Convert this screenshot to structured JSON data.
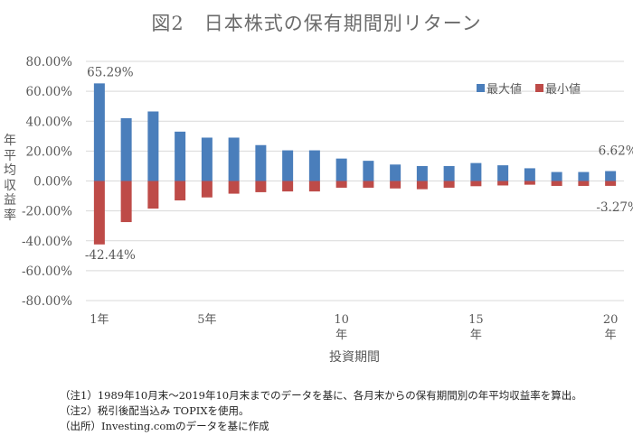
{
  "title": "図2　日本株式の保有期間別リターン",
  "chart_data": {
    "type": "bar",
    "title": "図2　日本株式の保有期間別リターン",
    "xlabel": "投資期間",
    "ylabel": "年平均収益率",
    "ylim": [
      -80,
      80
    ],
    "y_ticks": [
      80,
      60,
      40,
      20,
      0,
      -20,
      -40,
      -60,
      -80
    ],
    "y_tick_labels": [
      "80.00%",
      "60.00%",
      "40.00%",
      "20.00%",
      "0.00%",
      "-20.00%",
      "-40.00%",
      "-60.00%",
      "-80.00%"
    ],
    "grid": true,
    "legend_position": "top-right",
    "categories": [
      "1年",
      "2年",
      "3年",
      "4年",
      "5年",
      "6年",
      "7年",
      "8年",
      "9年",
      "10年",
      "11年",
      "12年",
      "13年",
      "14年",
      "15年",
      "16年",
      "17年",
      "18年",
      "19年",
      "20年"
    ],
    "x_tick_labels": [
      {
        "index": 0,
        "label": "1年"
      },
      {
        "index": 4,
        "label": "5年"
      },
      {
        "index": 9,
        "label": "10\n年"
      },
      {
        "index": 14,
        "label": "15\n年"
      },
      {
        "index": 19,
        "label": "20\n年"
      }
    ],
    "series": [
      {
        "name": "最大値",
        "color": "#4a7ebb",
        "values": [
          65.29,
          42.0,
          46.5,
          33.0,
          29.0,
          29.0,
          24.0,
          20.5,
          20.5,
          15.0,
          13.5,
          11.0,
          10.0,
          10.0,
          12.0,
          10.5,
          8.5,
          6.0,
          6.0,
          6.62
        ]
      },
      {
        "name": "最小値",
        "color": "#be4b48",
        "values": [
          -42.44,
          -27.5,
          -18.5,
          -13.0,
          -11.0,
          -8.5,
          -7.5,
          -7.0,
          -7.0,
          -4.5,
          -4.5,
          -5.0,
          -5.5,
          -4.5,
          -3.5,
          -3.0,
          -2.5,
          -3.3,
          -3.3,
          -3.27
        ]
      }
    ],
    "annotations": [
      {
        "series": 0,
        "index": 0,
        "text": "65.29%"
      },
      {
        "series": 1,
        "index": 0,
        "text": "-42.44%"
      },
      {
        "series": 0,
        "index": 19,
        "text": "6.62%"
      },
      {
        "series": 1,
        "index": 19,
        "text": "-3.27%"
      }
    ]
  },
  "notes": [
    "（注1）1989年10月末～2019年10月末までのデータを基に、各月末からの保有期間別の年平均収益率を算出。",
    "（注2）税引後配当込み TOPIXを使用。",
    "（出所）Investing.comのデータを基に作成"
  ]
}
